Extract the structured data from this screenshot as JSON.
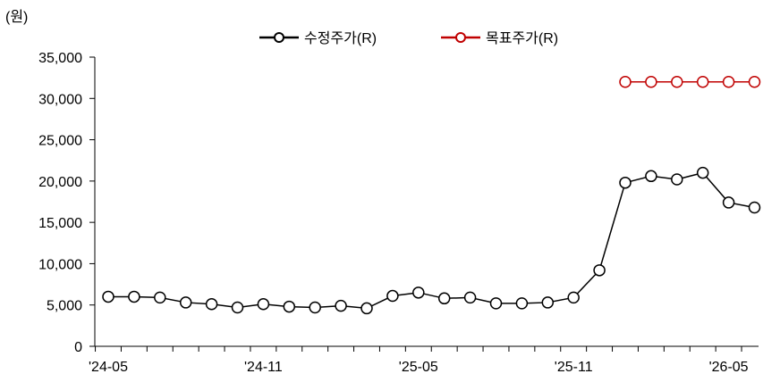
{
  "chart_data": {
    "type": "line",
    "unit_label": "(원)",
    "y_ticks": [
      "0",
      "5,000",
      "10,000",
      "15,000",
      "20,000",
      "25,000",
      "30,000",
      "35,000"
    ],
    "ylim": [
      0,
      35000
    ],
    "x_ticks": [
      "'24-05",
      "'24-11",
      "'25-05",
      "'25-11",
      "'26-05"
    ],
    "grid": false,
    "legend_placement": "top-center",
    "series": [
      {
        "name": "수정주가(R)",
        "color": "#000000",
        "values": [
          6000,
          6000,
          5900,
          5300,
          5100,
          4700,
          5100,
          4800,
          4700,
          4900,
          4600,
          6100,
          6500,
          5800,
          5900,
          5200,
          5200,
          5300,
          5900,
          9200,
          19800,
          20600,
          20200,
          21000,
          17400,
          16800
        ]
      },
      {
        "name": "목표주가(R)",
        "color": "#c00000",
        "start_index": 20,
        "values": [
          32000,
          32000,
          32000,
          32000,
          32000,
          32000
        ]
      }
    ]
  }
}
